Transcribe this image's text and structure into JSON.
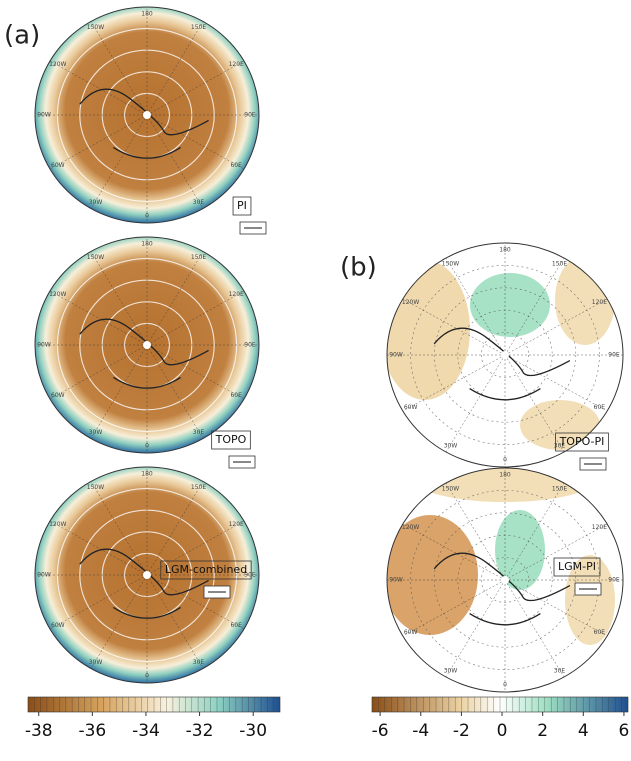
{
  "panel_a": {
    "label": "(a)",
    "maps": [
      {
        "label": "PI"
      },
      {
        "label": "TOPO"
      },
      {
        "label": "LGM-combined"
      }
    ],
    "colorbar": {
      "ticks": [
        -38,
        -36,
        -34,
        -32,
        -30
      ],
      "lim": [
        -38.4,
        -29
      ]
    }
  },
  "panel_b": {
    "label": "(b)",
    "maps": [
      {
        "label": "TOPO-PI"
      },
      {
        "label": "LGM-PI"
      }
    ],
    "colorbar": {
      "ticks": [
        -6,
        -4,
        -2,
        0,
        2,
        4,
        6
      ],
      "lim": [
        -6.4,
        6.2
      ]
    }
  },
  "longitude_labels": [
    "180",
    "150E",
    "120E",
    "90E",
    "60E",
    "30E",
    "0",
    "30W",
    "60W",
    "90W",
    "120W",
    "150W"
  ]
}
